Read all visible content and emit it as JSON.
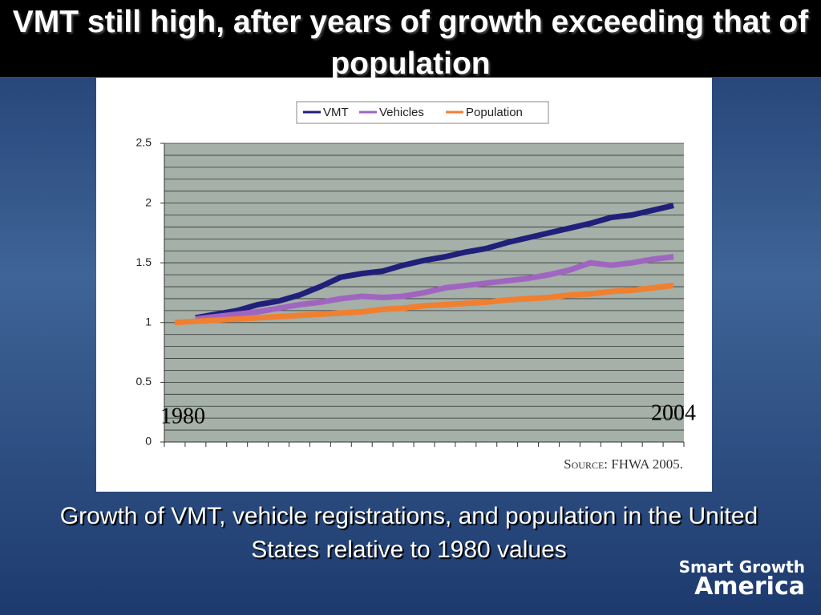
{
  "slide": {
    "title": "VMT still high, after years of growth exceeding that of population",
    "caption": "Growth of VMT, vehicle registrations, and population in the United States relative to 1980 values",
    "logo": [
      "Smart Growth",
      "America"
    ]
  },
  "chart_data": {
    "type": "line",
    "categories": [
      "1980",
      null,
      null,
      null,
      null,
      null,
      null,
      null,
      null,
      null,
      null,
      null,
      null,
      null,
      null,
      null,
      null,
      null,
      null,
      null,
      null,
      null,
      null,
      null,
      "2004"
    ],
    "series": [
      {
        "name": "VMT",
        "color": "#20207a",
        "values": [
          null,
          1.04,
          1.07,
          1.1,
          1.15,
          1.18,
          1.23,
          1.3,
          1.38,
          1.41,
          1.43,
          1.48,
          1.52,
          1.55,
          1.59,
          1.62,
          1.67,
          1.71,
          1.75,
          1.79,
          1.83,
          1.88,
          1.9,
          1.94,
          1.98
        ]
      },
      {
        "name": "Vehicles",
        "color": "#a065c0",
        "values": [
          null,
          1.03,
          1.05,
          1.07,
          1.09,
          1.12,
          1.15,
          1.17,
          1.2,
          1.22,
          1.21,
          1.22,
          1.25,
          1.29,
          1.31,
          1.33,
          1.35,
          1.37,
          1.4,
          1.44,
          1.5,
          1.48,
          1.5,
          1.53,
          1.55
        ]
      },
      {
        "name": "Population",
        "color": "#f07f30",
        "values": [
          1.0,
          1.01,
          1.02,
          1.03,
          1.04,
          1.05,
          1.06,
          1.07,
          1.08,
          1.09,
          1.11,
          1.12,
          1.14,
          1.15,
          1.16,
          1.17,
          1.19,
          1.2,
          1.21,
          1.23,
          1.24,
          1.26,
          1.27,
          1.29,
          1.31
        ]
      }
    ],
    "ylim": [
      0,
      2.5
    ],
    "yticks": [
      0,
      0.5,
      1,
      1.5,
      2,
      2.5
    ],
    "ygrid_minor": 0.1,
    "grid": true,
    "legend": "top",
    "source": "Source: FHWA 2005."
  }
}
